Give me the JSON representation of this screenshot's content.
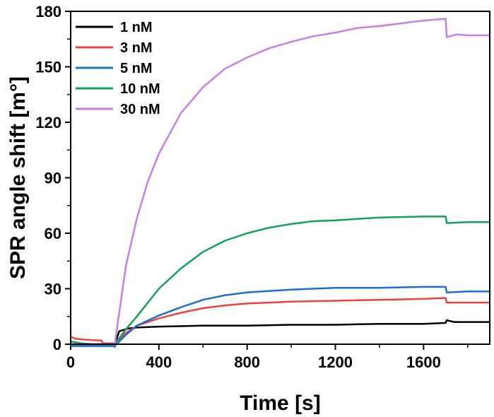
{
  "chart_data": {
    "type": "line",
    "title": "",
    "xlabel": "Time [s]",
    "ylabel": "SPR angle shift [m°]",
    "xlim": [
      0,
      1900
    ],
    "ylim": [
      0,
      180
    ],
    "xticks": [
      0,
      400,
      800,
      1200,
      1600
    ],
    "xtick_labels": [
      "0",
      "400",
      "800",
      "1200",
      "1600"
    ],
    "yticks": [
      0,
      30,
      60,
      90,
      120,
      150,
      180
    ],
    "ytick_labels": [
      "0",
      "30",
      "60",
      "90",
      "120",
      "150",
      "180"
    ],
    "legend_position": "top-left",
    "series": [
      {
        "name": "1 nM",
        "color": "#000000",
        "points": [
          [
            0,
            0
          ],
          [
            100,
            0
          ],
          [
            200,
            0
          ],
          [
            220,
            7
          ],
          [
            260,
            8.5
          ],
          [
            300,
            9
          ],
          [
            400,
            9.5
          ],
          [
            600,
            10
          ],
          [
            800,
            10
          ],
          [
            1000,
            10.5
          ],
          [
            1200,
            10.5
          ],
          [
            1400,
            11
          ],
          [
            1600,
            11
          ],
          [
            1700,
            11.5
          ],
          [
            1705,
            13
          ],
          [
            1720,
            12.5
          ],
          [
            1740,
            12
          ],
          [
            1800,
            12
          ],
          [
            1900,
            12
          ]
        ]
      },
      {
        "name": "3 nM",
        "color": "#e8433f",
        "points": [
          [
            0,
            4
          ],
          [
            20,
            3
          ],
          [
            60,
            2.5
          ],
          [
            100,
            2.2
          ],
          [
            140,
            2
          ],
          [
            145,
            0.5
          ],
          [
            200,
            0.5
          ],
          [
            250,
            6
          ],
          [
            300,
            10
          ],
          [
            400,
            14
          ],
          [
            500,
            17
          ],
          [
            600,
            19.5
          ],
          [
            700,
            21
          ],
          [
            800,
            22
          ],
          [
            900,
            22.5
          ],
          [
            1000,
            23
          ],
          [
            1200,
            23.5
          ],
          [
            1400,
            24
          ],
          [
            1600,
            24.5
          ],
          [
            1700,
            25
          ],
          [
            1705,
            22.5
          ],
          [
            1800,
            22.5
          ],
          [
            1900,
            22.5
          ]
        ]
      },
      {
        "name": "5 nM",
        "color": "#1c6fcf",
        "points": [
          [
            0,
            -1
          ],
          [
            100,
            -1
          ],
          [
            200,
            -1
          ],
          [
            250,
            5
          ],
          [
            300,
            10
          ],
          [
            400,
            15.5
          ],
          [
            500,
            20
          ],
          [
            600,
            24
          ],
          [
            700,
            26.5
          ],
          [
            800,
            28
          ],
          [
            1000,
            29.5
          ],
          [
            1200,
            30.5
          ],
          [
            1400,
            30.5
          ],
          [
            1600,
            31
          ],
          [
            1700,
            31
          ],
          [
            1705,
            28
          ],
          [
            1800,
            28.5
          ],
          [
            1900,
            28.5
          ]
        ]
      },
      {
        "name": "10 nM",
        "color": "#15a05a",
        "points": [
          [
            0,
            1.5
          ],
          [
            50,
            0.5
          ],
          [
            100,
            0
          ],
          [
            200,
            0
          ],
          [
            250,
            8
          ],
          [
            300,
            15
          ],
          [
            400,
            30
          ],
          [
            500,
            41
          ],
          [
            600,
            50
          ],
          [
            700,
            56
          ],
          [
            800,
            60
          ],
          [
            900,
            63
          ],
          [
            1000,
            65
          ],
          [
            1100,
            66.5
          ],
          [
            1200,
            67
          ],
          [
            1400,
            68.5
          ],
          [
            1600,
            69
          ],
          [
            1700,
            69
          ],
          [
            1705,
            65.5
          ],
          [
            1800,
            66
          ],
          [
            1900,
            66
          ]
        ]
      },
      {
        "name": "30 nM",
        "color": "#c77fe8",
        "points": [
          [
            0,
            0
          ],
          [
            100,
            0
          ],
          [
            200,
            0
          ],
          [
            250,
            42
          ],
          [
            300,
            68
          ],
          [
            350,
            88
          ],
          [
            400,
            103
          ],
          [
            450,
            114
          ],
          [
            500,
            125
          ],
          [
            600,
            139
          ],
          [
            700,
            149
          ],
          [
            800,
            155
          ],
          [
            900,
            160
          ],
          [
            1000,
            163.5
          ],
          [
            1100,
            166.5
          ],
          [
            1200,
            168.5
          ],
          [
            1300,
            171
          ],
          [
            1400,
            172
          ],
          [
            1500,
            173.5
          ],
          [
            1600,
            175
          ],
          [
            1700,
            176
          ],
          [
            1705,
            166
          ],
          [
            1750,
            167.5
          ],
          [
            1800,
            167
          ],
          [
            1900,
            167
          ]
        ]
      }
    ]
  }
}
